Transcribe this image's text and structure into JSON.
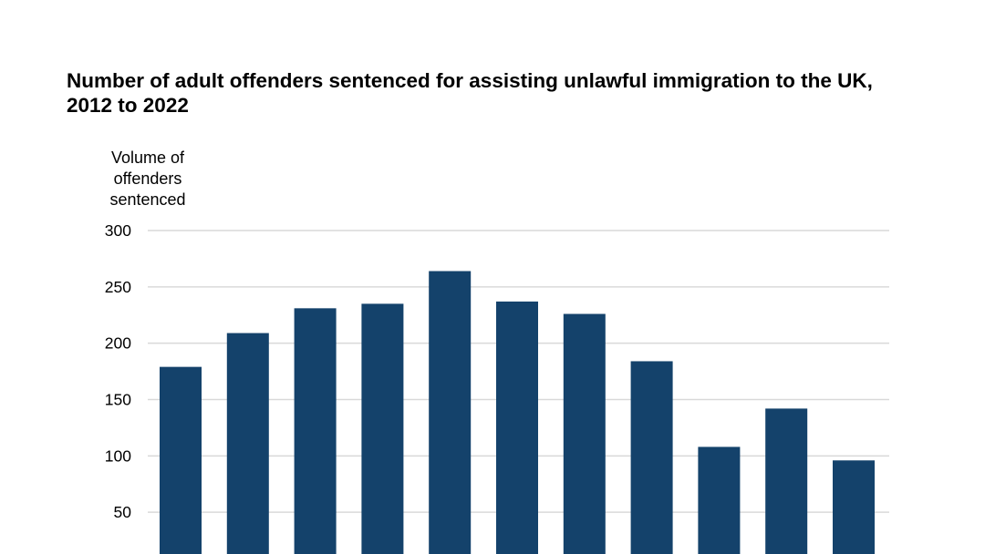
{
  "chart_data": {
    "type": "bar",
    "title": "Number of adult offenders sentenced for assisting unlawful immigration to the UK, 2012 to 2022",
    "ylabel": "Volume of offenders sentenced",
    "xlabel": "",
    "values": [
      179,
      209,
      231,
      235,
      264,
      237,
      226,
      184,
      108,
      142,
      96
    ],
    "ylim": [
      0,
      300
    ],
    "yticks": [
      "50",
      "100",
      "150",
      "200",
      "250",
      "300"
    ],
    "grid": true,
    "bar_color": "#14426b",
    "grid_color": "#d9d9d9"
  }
}
